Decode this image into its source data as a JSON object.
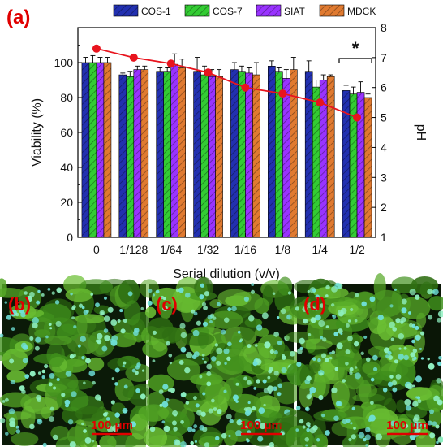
{
  "panels": {
    "a": "(a)",
    "b": "(b)",
    "c": "(c)",
    "d": "(d)"
  },
  "micrographs": {
    "scale_bar_label": "100 μm"
  },
  "chart_data": {
    "type": "bar",
    "categories": [
      "0",
      "1/128",
      "1/64",
      "1/32",
      "1/16",
      "1/8",
      "1/4",
      "1/2"
    ],
    "xlabel": "Serial dilution (v/v)",
    "ylabel": "Viability (%)",
    "y2label": "pH",
    "ylim": [
      0,
      120
    ],
    "yticks": [
      0,
      20,
      40,
      60,
      80,
      100
    ],
    "y2lim": [
      1,
      8
    ],
    "y2ticks": [
      1,
      2,
      3,
      4,
      5,
      6,
      7,
      8
    ],
    "legend_position": "top",
    "significance_label": "*",
    "series": [
      {
        "name": "COS-1",
        "color": "#2230b0",
        "values": [
          100,
          93,
          95,
          95,
          96,
          98,
          95,
          84
        ],
        "errors": [
          3,
          1,
          2,
          8,
          4,
          3,
          6,
          3
        ]
      },
      {
        "name": "COS-7",
        "color": "#33cc33",
        "values": [
          100,
          92,
          95,
          93,
          95,
          95,
          86,
          82
        ],
        "errors": [
          4,
          3,
          2,
          5,
          3,
          2,
          4,
          4
        ]
      },
      {
        "name": "SIAT",
        "color": "#9933ff",
        "values": [
          100,
          96,
          99,
          92,
          94,
          91,
          90,
          83
        ],
        "errors": [
          3,
          2,
          6,
          4,
          3,
          5,
          3,
          6
        ]
      },
      {
        "name": "MDCK",
        "color": "#e07a30",
        "values": [
          100,
          96,
          97,
          92,
          93,
          96,
          92,
          80
        ],
        "errors": [
          3,
          2,
          5,
          4,
          7,
          7,
          1,
          2
        ]
      }
    ],
    "ph_series": {
      "color": "#e8141e",
      "values": [
        7.3,
        7.0,
        6.8,
        6.5,
        6.0,
        5.8,
        5.5,
        5.0
      ]
    }
  }
}
